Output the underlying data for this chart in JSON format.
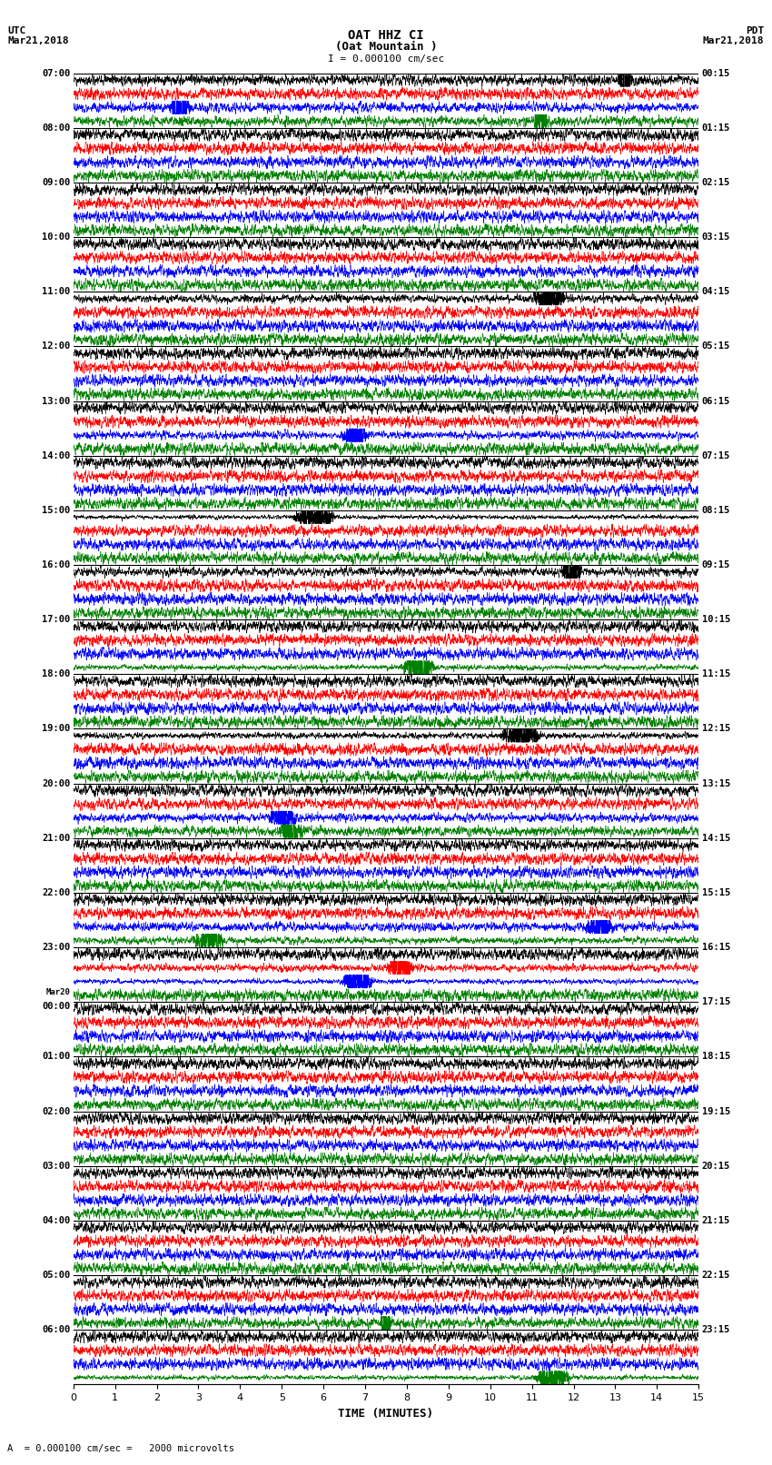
{
  "title_line1": "OAT HHZ CI",
  "title_line2": "(Oat Mountain )",
  "scale_label": "I = 0.000100 cm/sec",
  "bottom_note": "A  = 0.000100 cm/sec =   2000 microvolts",
  "utc_label": "UTC\nMar21,2018",
  "pdt_label": "PDT\nMar21,2018",
  "xlabel": "TIME (MINUTES)",
  "left_times": [
    "07:00",
    "08:00",
    "09:00",
    "10:00",
    "11:00",
    "12:00",
    "13:00",
    "14:00",
    "15:00",
    "16:00",
    "17:00",
    "18:00",
    "19:00",
    "20:00",
    "21:00",
    "22:00",
    "23:00",
    "Mar20\n00:00",
    "01:00",
    "02:00",
    "03:00",
    "04:00",
    "05:00",
    "06:00"
  ],
  "right_times": [
    "00:15",
    "01:15",
    "02:15",
    "03:15",
    "04:15",
    "05:15",
    "06:15",
    "07:15",
    "08:15",
    "09:15",
    "10:15",
    "11:15",
    "12:15",
    "13:15",
    "14:15",
    "15:15",
    "16:15",
    "17:15",
    "18:15",
    "19:15",
    "20:15",
    "21:15",
    "22:15",
    "23:15"
  ],
  "n_rows": 24,
  "n_subrows": 4,
  "trace_colors": [
    "black",
    "red",
    "blue",
    "green"
  ],
  "xmin": 0,
  "xmax": 15,
  "xticks": [
    0,
    1,
    2,
    3,
    4,
    5,
    6,
    7,
    8,
    9,
    10,
    11,
    12,
    13,
    14,
    15
  ],
  "fig_width": 8.5,
  "fig_height": 16.13,
  "dpi": 100,
  "background_color": "white",
  "seed": 42
}
